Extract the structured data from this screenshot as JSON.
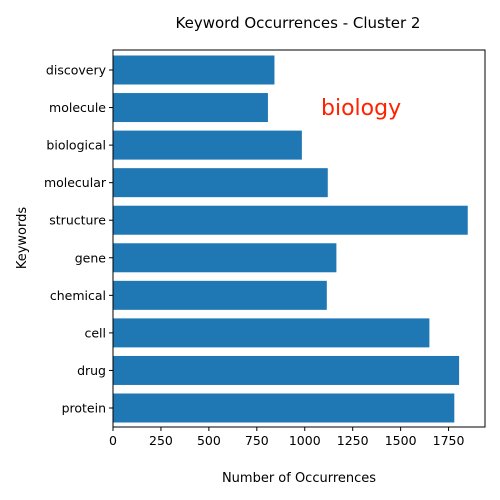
{
  "chart_data": {
    "type": "bar",
    "orientation": "horizontal",
    "title": "Keyword Occurrences - Cluster 2",
    "xlabel": "Number of Occurrences",
    "ylabel": "Keywords",
    "categories": [
      "protein",
      "drug",
      "cell",
      "chemical",
      "gene",
      "structure",
      "molecular",
      "biological",
      "molecule",
      "discovery"
    ],
    "values": [
      1780,
      1805,
      1650,
      1115,
      1165,
      1850,
      1120,
      985,
      808,
      842
    ],
    "xlim": [
      0,
      1940
    ],
    "xticks": [
      0,
      250,
      500,
      750,
      1000,
      1250,
      1500,
      1750
    ],
    "grid": false,
    "bar_color": "#1f77b4",
    "annotation": {
      "text": "biology",
      "color": "#ff2200"
    }
  }
}
